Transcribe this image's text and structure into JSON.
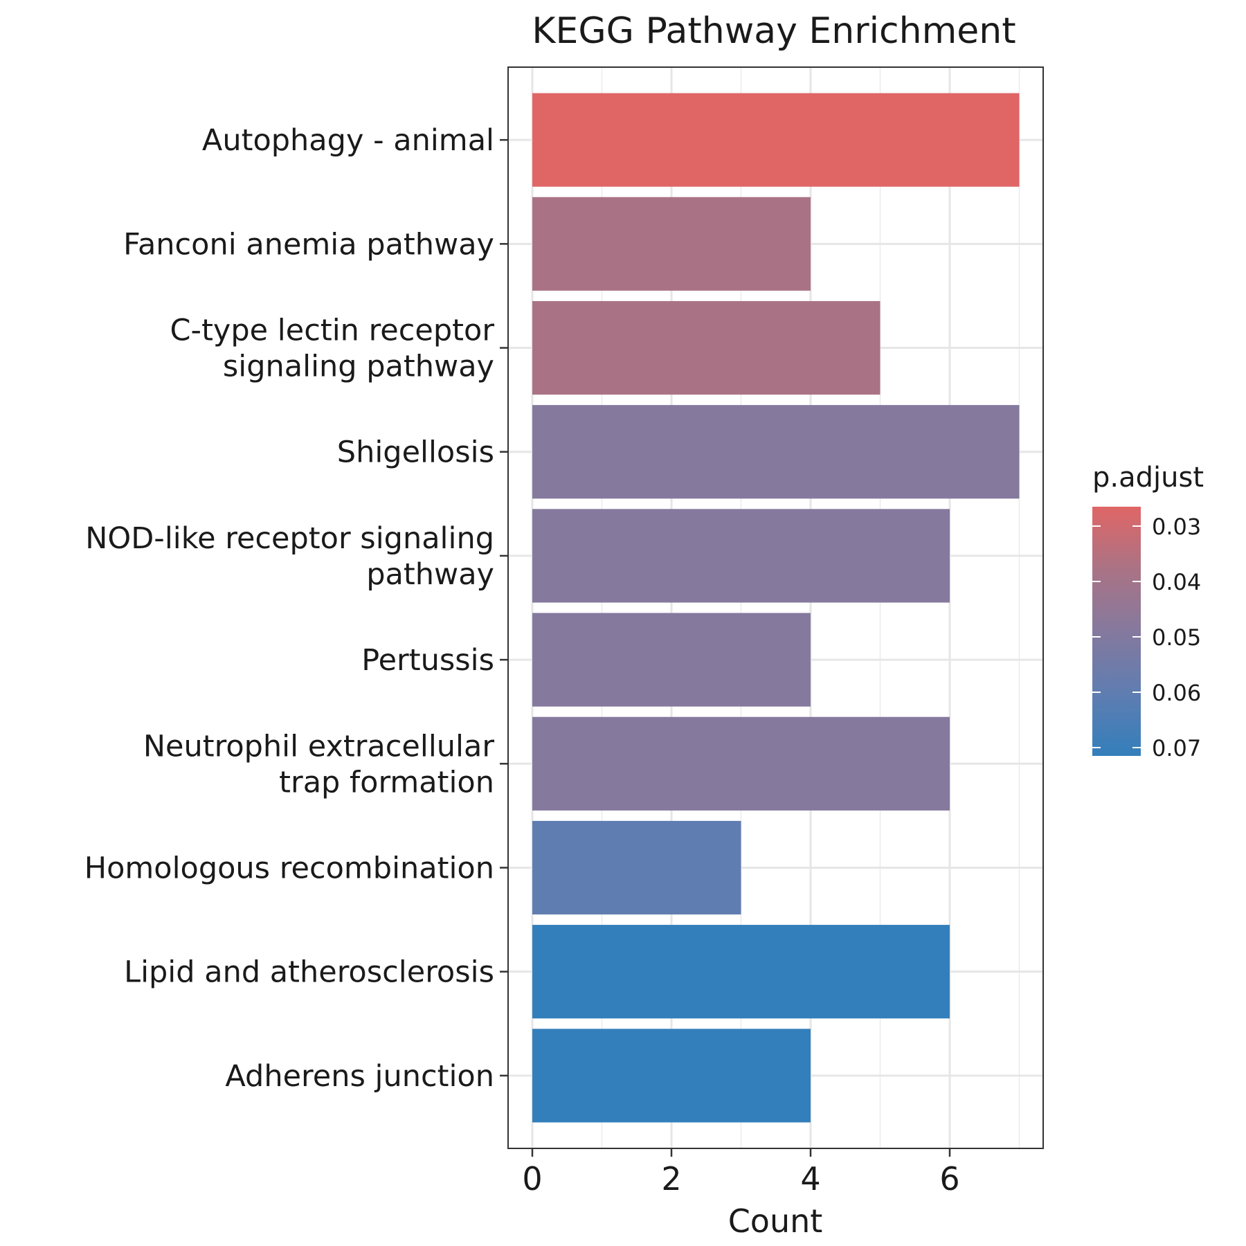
{
  "chart_data": {
    "type": "bar",
    "orientation": "horizontal",
    "title": "KEGG Pathway Enrichment",
    "xlabel": "Count",
    "ylabel": "",
    "xlim": [
      0,
      7
    ],
    "x_ticks": [
      0,
      2,
      4,
      6
    ],
    "grid": true,
    "categories": [
      [
        "Autophagy - animal"
      ],
      [
        "Fanconi anemia pathway"
      ],
      [
        "C-type lectin receptor",
        "signaling pathway"
      ],
      [
        "Shigellosis"
      ],
      [
        "NOD-like receptor signaling",
        "pathway"
      ],
      [
        "Pertussis"
      ],
      [
        "Neutrophil extracellular",
        "trap formation"
      ],
      [
        "Homologous recombination"
      ],
      [
        "Lipid and atherosclerosis"
      ],
      [
        "Adherens junction"
      ]
    ],
    "values": [
      7,
      4,
      5,
      7,
      6,
      4,
      6,
      3,
      6,
      4
    ],
    "bar_colors": [
      "#e06666",
      "#aa7385",
      "#aa7385",
      "#85799e",
      "#85799e",
      "#85799e",
      "#85799e",
      "#5f7db1",
      "#337fbb",
      "#337fbb"
    ],
    "legend": {
      "title": "p.adjust",
      "placement": "right",
      "ticks": [
        "0.03",
        "0.04",
        "0.05",
        "0.06",
        "0.07"
      ],
      "gradient": [
        "#e06666",
        "#aa7385",
        "#85799e",
        "#5f7db1",
        "#337fbb"
      ]
    }
  }
}
